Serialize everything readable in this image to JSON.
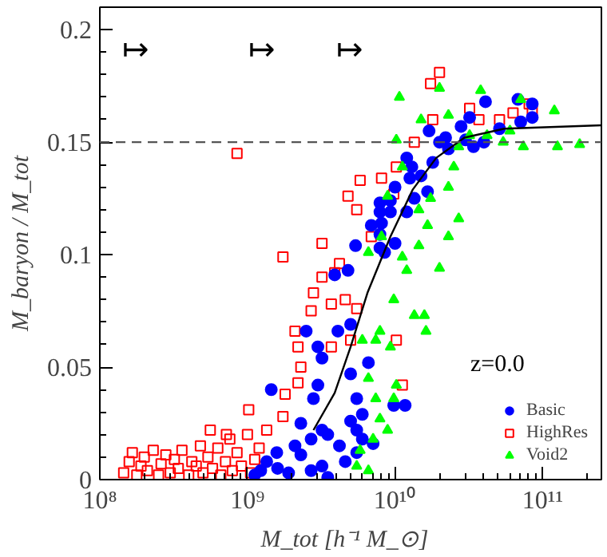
{
  "chart_data": {
    "type": "scatter",
    "xlabel": "M_tot   [h⁻¹ M_⊙]",
    "ylabel": "M_baryon / M_tot",
    "log": "x",
    "xlim": [
      100000000.0,
      250000000000.0
    ],
    "ylim": [
      0,
      0.21
    ],
    "xticks": [
      {
        "value": 100000000.0,
        "label": "10⁸"
      },
      {
        "value": 1000000000.0,
        "label": "10⁹"
      },
      {
        "value": 10000000000.0,
        "label": "10¹⁰"
      },
      {
        "value": 100000000000.0,
        "label": "10¹¹"
      }
    ],
    "yticks": [
      0,
      0.05,
      0.1,
      0.15,
      0.2
    ],
    "grid": false,
    "legend": "bottom right",
    "ref_lines": [
      {
        "axis": "y",
        "value": 0.15,
        "color": "#555555",
        "line_style": "dashed"
      }
    ],
    "annotations": [
      "z=0.0",
      "↦",
      "↦",
      "↦"
    ],
    "series": [
      {
        "name": "HighRes",
        "marker": "square",
        "color": "#ff0000",
        "x": [
          145000000.0,
          158000000.0,
          166000000.0,
          178000000.0,
          190000000.0,
          200000000.0,
          210000000.0,
          230000000.0,
          250000000.0,
          260000000.0,
          280000000.0,
          300000000.0,
          320000000.0,
          340000000.0,
          360000000.0,
          400000000.0,
          420000000.0,
          450000000.0,
          480000000.0,
          500000000.0,
          540000000.0,
          580000000.0,
          630000000.0,
          660000000.0,
          710000000.0,
          760000000.0,
          790000000.0,
          850000000.0,
          910000000.0,
          1000000000.0,
          1050000000.0,
          1120000000.0,
          1200000000.0,
          1020000000.0,
          720000000.0,
          560000000.0,
          1350000000.0,
          1740000000.0,
          1800000000.0,
          2200000000.0,
          2300000000.0,
          2200000000.0,
          2100000000.0,
          2700000000.0,
          2800000000.0,
          3200000000.0,
          3700000000.0,
          4600000000.0,
          5500000000.0,
          10200000000.0,
          11200000000.0,
          3700000000.0,
          5000000000.0,
          850000000.0,
          1740000000.0,
          3200000000.0,
          4800000000.0,
          5500000000.0,
          5800000000.0,
          8100000000.0,
          10200000000.0,
          13500000000.0,
          17400000000.0,
          20000000000.0,
          18000000000.0,
          32000000000.0,
          37000000000.0,
          63000000000.0,
          81000000000.0,
          85000000000.0,
          51000000000.0,
          4200000000.0,
          3900000000.0,
          6900000000.0,
          9800000000.0
        ],
        "values": [
          0.003,
          0.008,
          0.012,
          0.002,
          0.006,
          0.01,
          0.004,
          0.013,
          0.002,
          0.007,
          0.011,
          0.003,
          0.009,
          0.005,
          0.013,
          0.002,
          0.008,
          0.006,
          0.015,
          0.003,
          0.01,
          0.005,
          0.014,
          0.002,
          0.008,
          0.018,
          0.004,
          0.012,
          0.006,
          0.02,
          0.003,
          0.009,
          0.014,
          0.031,
          0.02,
          0.022,
          0.022,
          0.028,
          0.038,
          0.043,
          0.05,
          0.059,
          0.066,
          0.075,
          0.083,
          0.09,
          0.078,
          0.08,
          0.076,
          0.062,
          0.042,
          0.059,
          0.062,
          0.145,
          0.099,
          0.105,
          0.126,
          0.12,
          0.133,
          0.134,
          0.139,
          0.15,
          0.176,
          0.181,
          0.16,
          0.165,
          0.16,
          0.163,
          0.167,
          0.164,
          0.16,
          0.096,
          0.092,
          0.108,
          0.127
        ]
      },
      {
        "name": "Basic",
        "marker": "circle",
        "color": "#0000ff",
        "x": [
          68000000000.0,
          41000000000.0,
          85000000000.0,
          85000000000.0,
          71000000000.0,
          51000000000.0,
          32000000000.0,
          28000000000.0,
          34000000000.0,
          40000000000.0,
          30000000000.0,
          22000000000.0,
          17000000000.0,
          20000000000.0,
          23000000000.0,
          18000000000.0,
          12000000000.0,
          13000000000.0,
          15000000000.0,
          12600000000.0,
          10000000000.0,
          7900000000.0,
          9300000000.0,
          13500000000.0,
          16600000000.0,
          7900000000.0,
          9300000000.0,
          12000000000.0,
          8100000000.0,
          6900000000.0,
          7900000000.0,
          10000000000.0,
          7900000000.0,
          8500000000.0,
          5400000000.0,
          4800000000.0,
          3900000000.0,
          5000000000.0,
          4100000000.0,
          2500000000.0,
          3000000000.0,
          3200000000.0,
          6600000000.0,
          5000000000.0,
          3000000000.0,
          2800000000.0,
          1450000000.0,
          5500000000.0,
          6000000000.0,
          9800000000.0,
          11700000000.0,
          5000000000.0,
          2300000000.0,
          3200000000.0,
          1350000000.0,
          1600000000.0,
          2100000000.0,
          2700000000.0,
          3500000000.0,
          4200000000.0,
          5500000000.0,
          6000000000.0,
          2300000000.0,
          3200000000.0,
          4600000000.0,
          3500000000.0,
          1230000000.0,
          1900000000.0,
          2700000000.0,
          5500000000.0,
          1120000000.0,
          1580000000.0,
          7100000000.0
        ],
        "values": [
          0.169,
          0.168,
          0.167,
          0.161,
          0.159,
          0.156,
          0.161,
          0.157,
          0.148,
          0.15,
          0.151,
          0.152,
          0.155,
          0.15,
          0.147,
          0.141,
          0.143,
          0.139,
          0.135,
          0.134,
          0.13,
          0.123,
          0.124,
          0.125,
          0.128,
          0.119,
          0.119,
          0.119,
          0.114,
          0.113,
          0.109,
          0.105,
          0.103,
          0.101,
          0.104,
          0.093,
          0.091,
          0.069,
          0.066,
          0.066,
          0.059,
          0.054,
          0.052,
          0.047,
          0.042,
          0.036,
          0.04,
          0.036,
          0.029,
          0.033,
          0.033,
          0.026,
          0.025,
          0.022,
          0.008,
          0.005,
          0.015,
          0.018,
          0.02,
          0.015,
          0.022,
          0.018,
          0.011,
          0.006,
          0.008,
          0.001,
          0.004,
          0.003,
          0.004,
          0.012,
          0.002,
          0.012,
          0.016
        ]
      },
      {
        "name": "Void2",
        "marker": "triangle",
        "color": "#00ff00",
        "x": [
          5500000000.0,
          6600000000.0,
          5800000000.0,
          7100000000.0,
          7900000000.0,
          8900000000.0,
          7400000000.0,
          9800000000.0,
          10200000000.0,
          6600000000.0,
          9300000000.0,
          7400000000.0,
          13500000000.0,
          15800000000.0,
          16200000000.0,
          9800000000.0,
          7900000000.0,
          6000000000.0,
          10700000000.0,
          20000000000.0,
          38000000000.0,
          71000000000.0,
          120000000000.0,
          178000000000.0,
          126000000000.0,
          74000000000.0,
          54000000000.0,
          60000000000.0,
          42000000000.0,
          27000000000.0,
          25000000000.0,
          23000000000.0,
          27000000000.0,
          23000000000.0,
          20000000000.0,
          16600000000.0,
          14500000000.0,
          17400000000.0,
          11200000000.0,
          10200000000.0,
          15000000000.0,
          23000000000.0,
          11200000000.0,
          12000000000.0,
          8100000000.0,
          6600000000.0,
          8900000000.0,
          14500000000.0,
          32000000000.0
        ],
        "values": [
          0.006,
          0.004,
          0.013,
          0.018,
          0.027,
          0.022,
          0.036,
          0.036,
          0.042,
          0.045,
          0.059,
          0.062,
          0.073,
          0.073,
          0.066,
          0.08,
          0.066,
          0.062,
          0.17,
          0.174,
          0.173,
          0.169,
          0.164,
          0.149,
          0.148,
          0.148,
          0.15,
          0.155,
          0.153,
          0.148,
          0.139,
          0.13,
          0.116,
          0.108,
          0.094,
          0.113,
          0.12,
          0.125,
          0.139,
          0.151,
          0.16,
          0.162,
          0.099,
          0.093,
          0.108,
          0.101,
          0.126,
          0.104,
          0.153
        ]
      },
      {
        "type": "line",
        "color": "#000000",
        "line_style": "solid",
        "x": [
          2800000000.0,
          3900000000.0,
          5000000000.0,
          6500000000.0,
          9300000000.0,
          13200000000.0,
          19000000000.0,
          29500000000.0,
          55000000000.0,
          250000000000.0
        ],
        "values": [
          0.022,
          0.0385,
          0.059,
          0.083,
          0.108,
          0.129,
          0.143,
          0.152,
          0.156,
          0.1575
        ]
      }
    ]
  }
}
